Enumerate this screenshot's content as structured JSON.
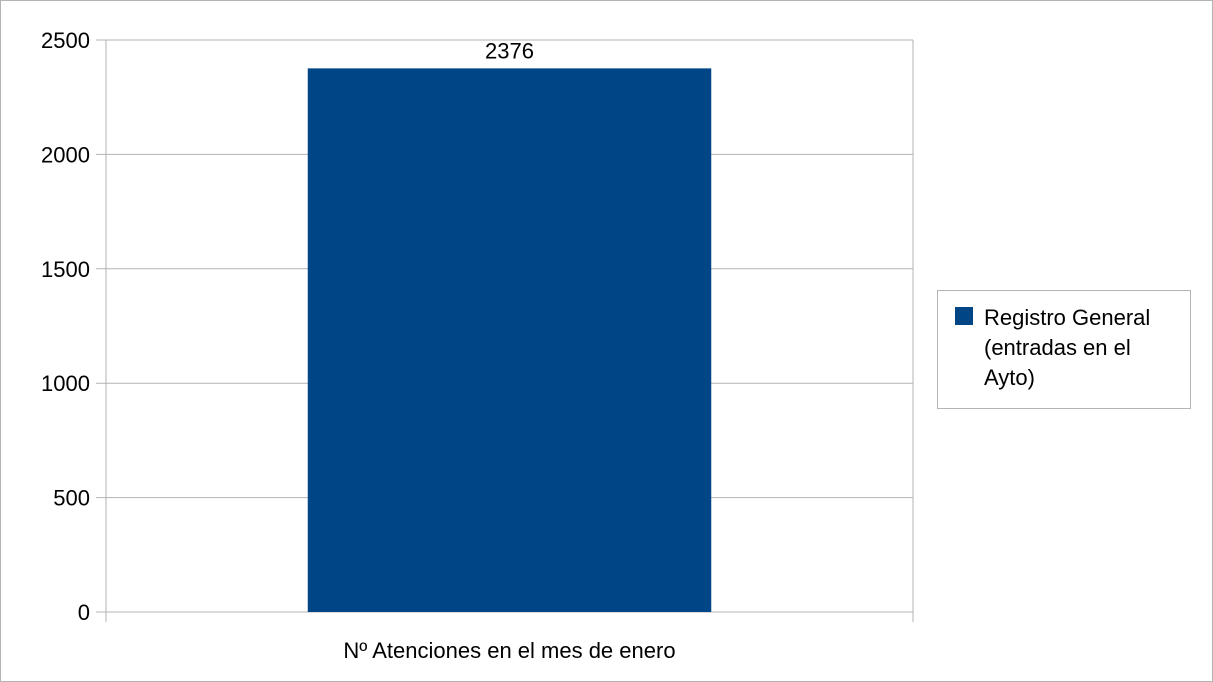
{
  "chart_data": {
    "type": "bar",
    "categories": [
      "Nº Atenciones en el mes de enero"
    ],
    "series": [
      {
        "name": "Registro General (entradas en el Ayto)",
        "values": [
          2376
        ],
        "color": "#004586"
      }
    ],
    "yticks": [
      "0",
      "500",
      "1000",
      "1500",
      "2000",
      "2500"
    ],
    "ylim": [
      0,
      2500
    ],
    "data_labels": [
      "2376"
    ],
    "grid": true,
    "legend_position": "right"
  }
}
